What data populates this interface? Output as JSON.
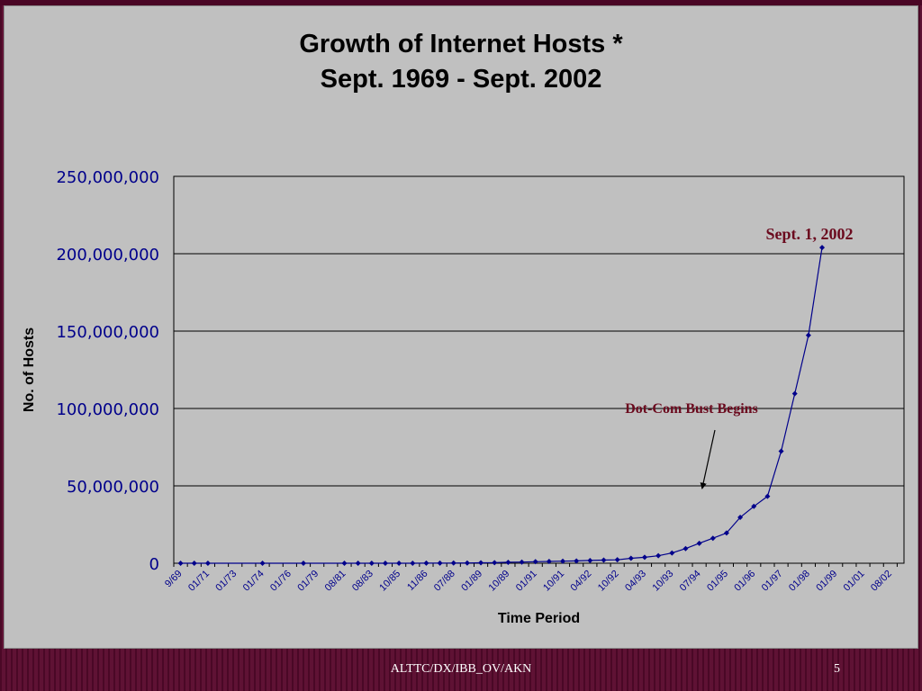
{
  "slide": {
    "footer": "ALTTC/DX/IBB_OV/AKN",
    "page_number": "5"
  },
  "chart_data": {
    "type": "line",
    "title_line1": "Growth of Internet Hosts *",
    "title_line2": "Sept. 1969 - Sept. 2002",
    "xlabel": "Time Period",
    "ylabel": "No. of Hosts",
    "ylim": [
      0,
      250000000
    ],
    "yticks": [
      "0",
      "50,000,000",
      "100,000,000",
      "150,000,000",
      "200,000,000",
      "250,000,000"
    ],
    "grid": true,
    "categories": [
      "9/69",
      "",
      "01/71",
      "",
      "01/73",
      "",
      "01/74",
      "",
      "01/76",
      "",
      "01/79",
      "",
      "08/81",
      "",
      "08/83",
      "",
      "10/85",
      "",
      "11/86",
      "",
      "07/88",
      "",
      "01/89",
      "",
      "10/89",
      "",
      "01/91",
      "",
      "10/91",
      "",
      "04/92",
      "",
      "10/92",
      "",
      "04/93",
      "",
      "10/93",
      "",
      "07/94",
      "",
      "01/95",
      "",
      "01/96",
      "",
      "01/97",
      "",
      "01/98",
      "",
      "01/99",
      "",
      "01/01",
      "",
      "08/02"
    ],
    "points": [
      {
        "x": 0,
        "y": 4
      },
      {
        "x": 1,
        "y": 23
      },
      {
        "x": 2,
        "y": 35
      },
      {
        "x": 6,
        "y": 62
      },
      {
        "x": 9,
        "y": 188
      },
      {
        "x": 12,
        "y": 213
      },
      {
        "x": 13,
        "y": 562
      },
      {
        "x": 14,
        "y": 1024
      },
      {
        "x": 15,
        "y": 1961
      },
      {
        "x": 16,
        "y": 5089
      },
      {
        "x": 17,
        "y": 28174
      },
      {
        "x": 18,
        "y": 56000
      },
      {
        "x": 19,
        "y": 80000
      },
      {
        "x": 20,
        "y": 130000
      },
      {
        "x": 21,
        "y": 159000
      },
      {
        "x": 22,
        "y": 313000
      },
      {
        "x": 23,
        "y": 376000
      },
      {
        "x": 24,
        "y": 617000
      },
      {
        "x": 25,
        "y": 727000
      },
      {
        "x": 26,
        "y": 992000
      },
      {
        "x": 27,
        "y": 1136000
      },
      {
        "x": 28,
        "y": 1313000
      },
      {
        "x": 29,
        "y": 1486000
      },
      {
        "x": 30,
        "y": 1776000
      },
      {
        "x": 31,
        "y": 2056000
      },
      {
        "x": 32,
        "y": 2217000
      },
      {
        "x": 33,
        "y": 3212000
      },
      {
        "x": 34,
        "y": 3864000
      },
      {
        "x": 35,
        "y": 4852000
      },
      {
        "x": 36,
        "y": 6642000
      },
      {
        "x": 37,
        "y": 9472000
      },
      {
        "x": 38,
        "y": 12881000
      },
      {
        "x": 39,
        "y": 16146000
      },
      {
        "x": 40,
        "y": 19540000
      },
      {
        "x": 41,
        "y": 29670000
      },
      {
        "x": 42,
        "y": 36739000
      },
      {
        "x": 43,
        "y": 43230000
      },
      {
        "x": 44,
        "y": 72398000
      },
      {
        "x": 45,
        "y": 109574000
      },
      {
        "x": 46,
        "y": 147345000
      },
      {
        "x": 47,
        "y": 204000000
      }
    ],
    "annotations": [
      {
        "text": "Sept. 1, 2002"
      },
      {
        "text": "Dot-Com Bust Begins",
        "arrow_to": {
          "x": 39,
          "y": 47000000
        }
      }
    ],
    "colors": {
      "line": "#00008b",
      "marker": "#00008b",
      "tick_label": "#00008b",
      "annotation": "#6b0a1e",
      "grid": "#000000",
      "panel": "#c0c0c0",
      "background": "#5a0a2e"
    }
  }
}
